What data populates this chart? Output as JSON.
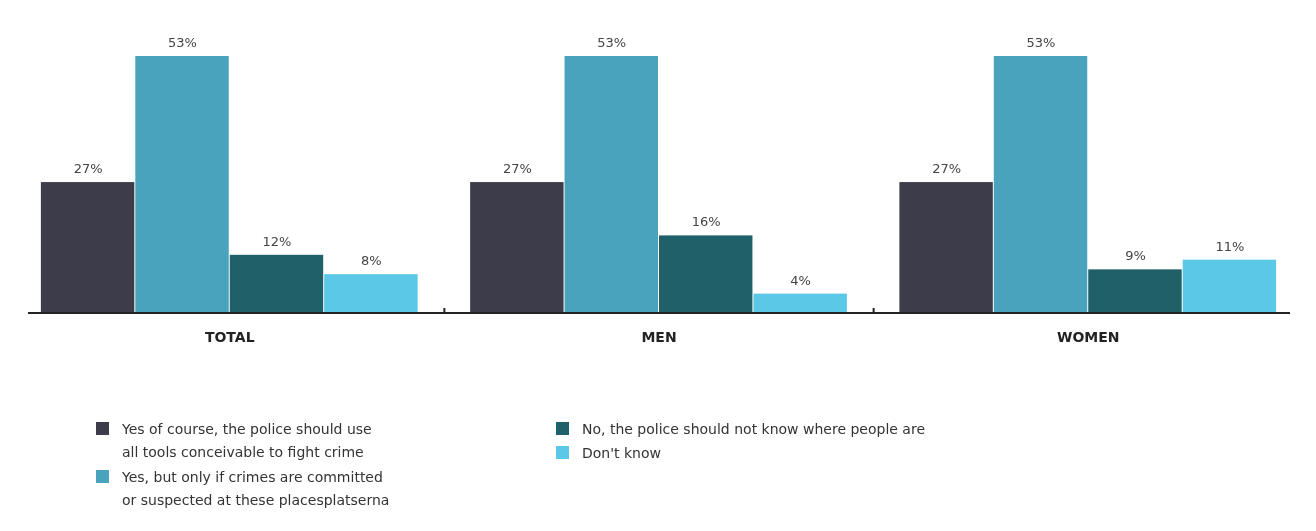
{
  "chart_data": {
    "type": "bar",
    "categories": [
      "TOTAL",
      "MEN",
      "WOMEN"
    ],
    "series": [
      {
        "name": "Yes of course, the police should use all tools conceivable to fight crime",
        "color": "#3d3c4a",
        "values": [
          27,
          27,
          27
        ],
        "value_labels": [
          "27%",
          "27%",
          "27%"
        ]
      },
      {
        "name": "Yes, but only if crimes are committed or suspected at these placesplatserna",
        "color": "#4aa3bd",
        "values": [
          53,
          53,
          53
        ],
        "value_labels": [
          "53%",
          "53%",
          "53%"
        ]
      },
      {
        "name": "No, the police should not know where people are",
        "color": "#1f6069",
        "values": [
          12,
          16,
          9
        ],
        "value_labels": [
          "12%",
          "16%",
          "9%"
        ]
      },
      {
        "name": "Don't know",
        "color": "#5ac8e6",
        "values": [
          8,
          4,
          11
        ],
        "value_labels": [
          "8%",
          "4%",
          "11%"
        ]
      }
    ],
    "legend": "bottom",
    "grid": false
  }
}
